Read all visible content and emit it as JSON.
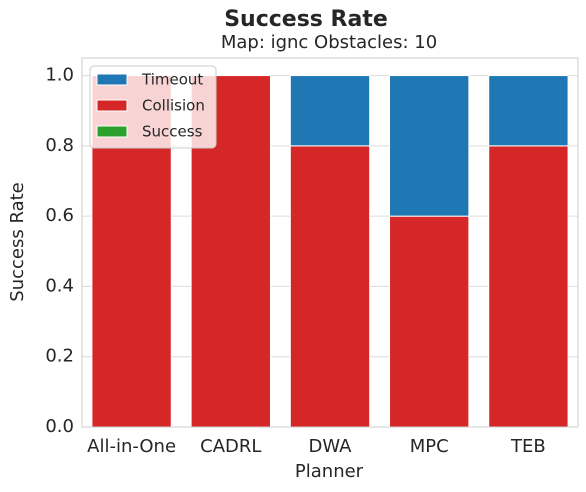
{
  "chart_data": {
    "type": "bar",
    "stacked": true,
    "title": "Success Rate",
    "subtitle": "Map: ignc Obstacles: 10",
    "x_label": "Planner",
    "y_label": "Success Rate",
    "categories": [
      "All-in-One",
      "CADRL",
      "DWA",
      "MPC",
      "TEB"
    ],
    "series": [
      {
        "name": "Timeout",
        "color": "#1f77b4",
        "values": [
          0,
          0,
          0.2,
          0.4,
          0.2
        ]
      },
      {
        "name": "Collision",
        "color": "#d62728",
        "values": [
          1.0,
          1.0,
          0.8,
          0.6,
          0.8
        ]
      },
      {
        "name": "Success",
        "color": "#2ca02c",
        "values": [
          0,
          0,
          0,
          0,
          0
        ]
      }
    ],
    "ylim": [
      0,
      1.05
    ],
    "yticks": [
      {
        "value": 0,
        "label": "0.0"
      },
      0.2,
      0.4,
      0.6,
      0.8,
      {
        "value": 1,
        "label": "1.0"
      }
    ],
    "grid": true,
    "legend": "upper left"
  }
}
